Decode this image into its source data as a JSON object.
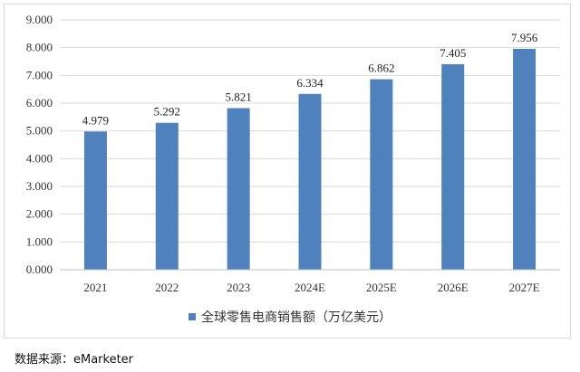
{
  "chart_data": {
    "type": "bar",
    "categories": [
      "2021",
      "2022",
      "2023",
      "2024E",
      "2025E",
      "2026E",
      "2027E"
    ],
    "series": [
      {
        "name": "全球零售电商销售额（万亿美元）",
        "values": [
          4.979,
          5.292,
          5.821,
          6.334,
          6.862,
          7.405,
          7.956
        ],
        "labels": [
          "4.979",
          "5.292",
          "5.821",
          "6.334",
          "6.862",
          "7.405",
          "7.956"
        ],
        "color": "#4f81bd"
      }
    ],
    "ylim": [
      0,
      9
    ],
    "yticks": [
      "0.000",
      "1.000",
      "2.000",
      "3.000",
      "4.000",
      "5.000",
      "6.000",
      "7.000",
      "8.000",
      "9.000"
    ],
    "grid": true,
    "legend_position": "bottom"
  },
  "source": "数据来源：eMarketer"
}
